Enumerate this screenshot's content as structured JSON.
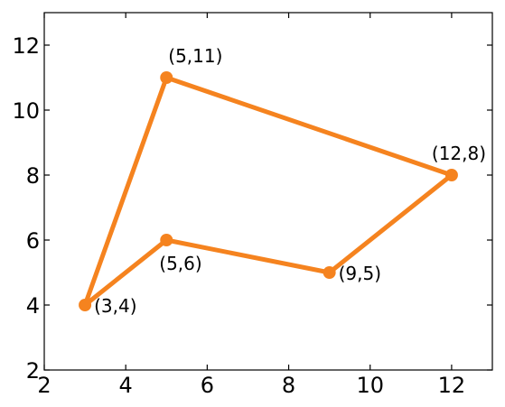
{
  "chart_data": {
    "type": "line",
    "title": "",
    "xlabel": "",
    "ylabel": "",
    "xlim": [
      2,
      13
    ],
    "ylim": [
      2,
      13
    ],
    "x_ticks": [
      2,
      4,
      6,
      8,
      10,
      12
    ],
    "y_ticks": [
      2,
      4,
      6,
      8,
      10,
      12
    ],
    "grid": false,
    "closed": true,
    "series": [
      {
        "color": "#f5831f",
        "points": [
          {
            "x": 3,
            "y": 4,
            "label": "(3,4)",
            "label_side": "right"
          },
          {
            "x": 5,
            "y": 11,
            "label": "(5,11)",
            "label_side": "above"
          },
          {
            "x": 12,
            "y": 8,
            "label": "(12,8)",
            "label_side": "above"
          },
          {
            "x": 9,
            "y": 5,
            "label": "(9,5)",
            "label_side": "right"
          },
          {
            "x": 5,
            "y": 6,
            "label": "(5,6)",
            "label_side": "below"
          }
        ]
      }
    ]
  }
}
